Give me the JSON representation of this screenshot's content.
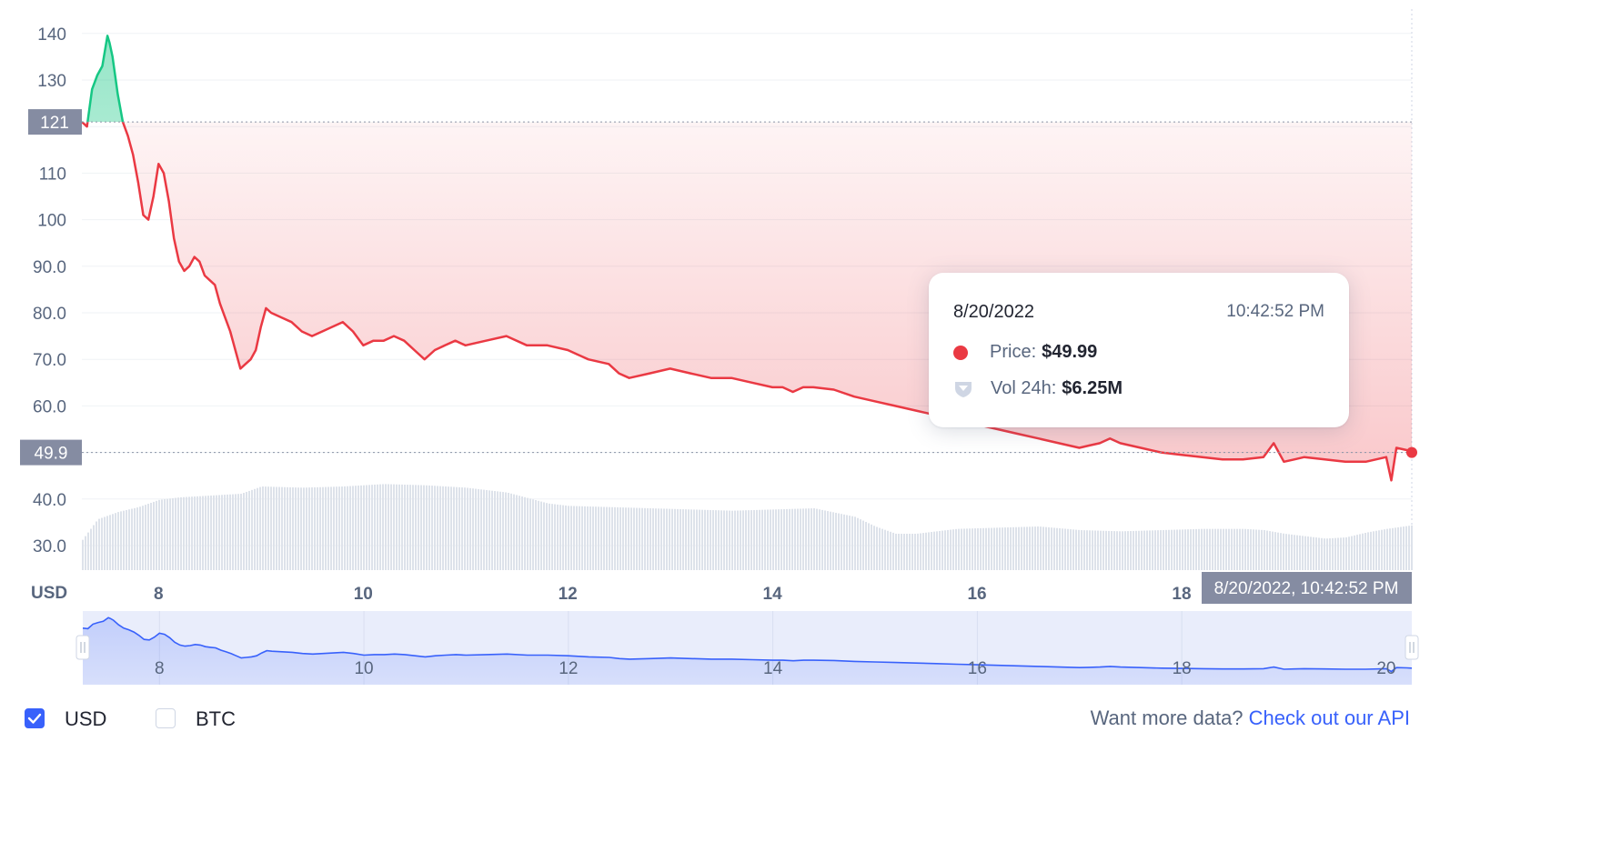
{
  "chart_data": {
    "type": "area",
    "currency_label": "USD",
    "ylim": [
      24,
      146
    ],
    "y_ticks": [
      30,
      40,
      50,
      60,
      70,
      80,
      90,
      100,
      110,
      120,
      130,
      140
    ],
    "y_tick_labels": [
      "30.0",
      "40.0",
      "",
      "60.0",
      "70.0",
      "80.0",
      "90.0",
      "100",
      "110",
      "",
      "130",
      "140"
    ],
    "x_range": [
      7.25,
      20.25
    ],
    "x_ticks": [
      8,
      10,
      12,
      14,
      16,
      18
    ],
    "x_tick_labels": [
      "8",
      "10",
      "12",
      "14",
      "16",
      "18"
    ],
    "reference_price": 121,
    "reference_label": "121",
    "current_price_label": "49.9",
    "current_time_label": "8/20/2022, 10:42:52 PM",
    "colors": {
      "up": "#16c784",
      "down": "#ea3943",
      "volume": "#cfd6e4",
      "navigator": "#3861fb"
    },
    "series": [
      {
        "name": "Price",
        "x": [
          7.25,
          7.3,
          7.35,
          7.4,
          7.45,
          7.5,
          7.52,
          7.55,
          7.6,
          7.65,
          7.7,
          7.75,
          7.8,
          7.85,
          7.9,
          7.95,
          8.0,
          8.05,
          8.1,
          8.15,
          8.2,
          8.25,
          8.3,
          8.35,
          8.4,
          8.45,
          8.5,
          8.55,
          8.6,
          8.65,
          8.7,
          8.75,
          8.8,
          8.85,
          8.9,
          8.95,
          9.0,
          9.05,
          9.1,
          9.2,
          9.3,
          9.4,
          9.5,
          9.6,
          9.7,
          9.8,
          9.9,
          10.0,
          10.1,
          10.2,
          10.3,
          10.4,
          10.5,
          10.6,
          10.7,
          10.8,
          10.9,
          11.0,
          11.2,
          11.4,
          11.6,
          11.8,
          12.0,
          12.1,
          12.2,
          12.4,
          12.5,
          12.6,
          12.8,
          13.0,
          13.2,
          13.4,
          13.6,
          13.8,
          14.0,
          14.1,
          14.2,
          14.3,
          14.4,
          14.6,
          14.8,
          15.0,
          15.2,
          15.4,
          15.6,
          15.8,
          16.0,
          16.2,
          16.4,
          16.6,
          16.8,
          17.0,
          17.1,
          17.2,
          17.3,
          17.4,
          17.6,
          17.8,
          18.0,
          18.2,
          18.4,
          18.6,
          18.8,
          18.9,
          19.0,
          19.1,
          19.2,
          19.4,
          19.6,
          19.8,
          20.0,
          20.05,
          20.1,
          20.2,
          20.25
        ],
        "y": [
          121,
          120,
          128,
          131,
          133,
          139.5,
          138,
          135,
          127,
          121,
          118,
          114,
          108,
          101,
          100,
          105,
          112,
          110,
          104,
          96,
          91,
          89,
          90,
          92,
          91,
          88,
          87,
          86,
          82,
          79,
          76,
          72,
          68,
          69,
          70,
          72,
          77,
          81,
          80,
          79,
          78,
          76,
          75,
          76,
          77,
          78,
          76,
          73,
          74,
          74,
          75,
          74,
          72,
          70,
          72,
          73,
          74,
          73,
          74,
          75,
          73,
          73,
          72,
          71,
          70,
          69,
          67,
          66,
          67,
          68,
          67,
          66,
          66,
          65,
          64,
          64,
          63,
          64,
          64,
          63.5,
          62,
          61,
          60,
          59,
          58,
          57,
          56,
          55,
          54,
          53,
          52,
          51,
          51.5,
          52,
          53,
          52,
          51,
          50,
          49.5,
          49,
          48.5,
          48.5,
          49,
          52,
          48,
          48.5,
          49,
          48.5,
          48,
          48,
          49,
          44,
          51,
          50.5,
          50
        ]
      },
      {
        "name": "Vol 24h",
        "x": [
          7.25,
          7.4,
          7.6,
          7.8,
          8.0,
          8.2,
          8.4,
          8.6,
          8.8,
          9.0,
          9.4,
          9.8,
          10.2,
          10.6,
          11.0,
          11.4,
          11.8,
          12.0,
          12.4,
          12.8,
          13.2,
          13.6,
          14.0,
          14.4,
          14.8,
          15.0,
          15.2,
          15.4,
          15.8,
          16.2,
          16.6,
          17.0,
          17.4,
          17.8,
          18.2,
          18.6,
          18.8,
          19.0,
          19.2,
          19.4,
          19.6,
          19.8,
          20.0,
          20.25
        ],
        "y": [
          2.5,
          4.2,
          4.8,
          5.2,
          5.8,
          6.0,
          6.1,
          6.2,
          6.3,
          6.9,
          6.8,
          6.9,
          7.1,
          7.0,
          6.8,
          6.4,
          5.5,
          5.3,
          5.2,
          5.1,
          5.0,
          4.9,
          5.0,
          5.1,
          4.4,
          3.6,
          3.0,
          3.0,
          3.4,
          3.5,
          3.6,
          3.3,
          3.2,
          3.3,
          3.4,
          3.4,
          3.3,
          3.0,
          2.8,
          2.6,
          2.7,
          3.1,
          3.4,
          3.7
        ]
      }
    ]
  },
  "tooltip": {
    "date": "8/20/2022",
    "time": "10:42:52 PM",
    "price_label": "Price:",
    "price_value": "$49.99",
    "vol_label": "Vol 24h:",
    "vol_value": "$6.25M"
  },
  "controls": {
    "usd_label": "USD",
    "usd_checked": true,
    "btc_label": "BTC",
    "btc_checked": false,
    "more_data_text": "Want more data?",
    "api_link_text": "Check out our API"
  }
}
